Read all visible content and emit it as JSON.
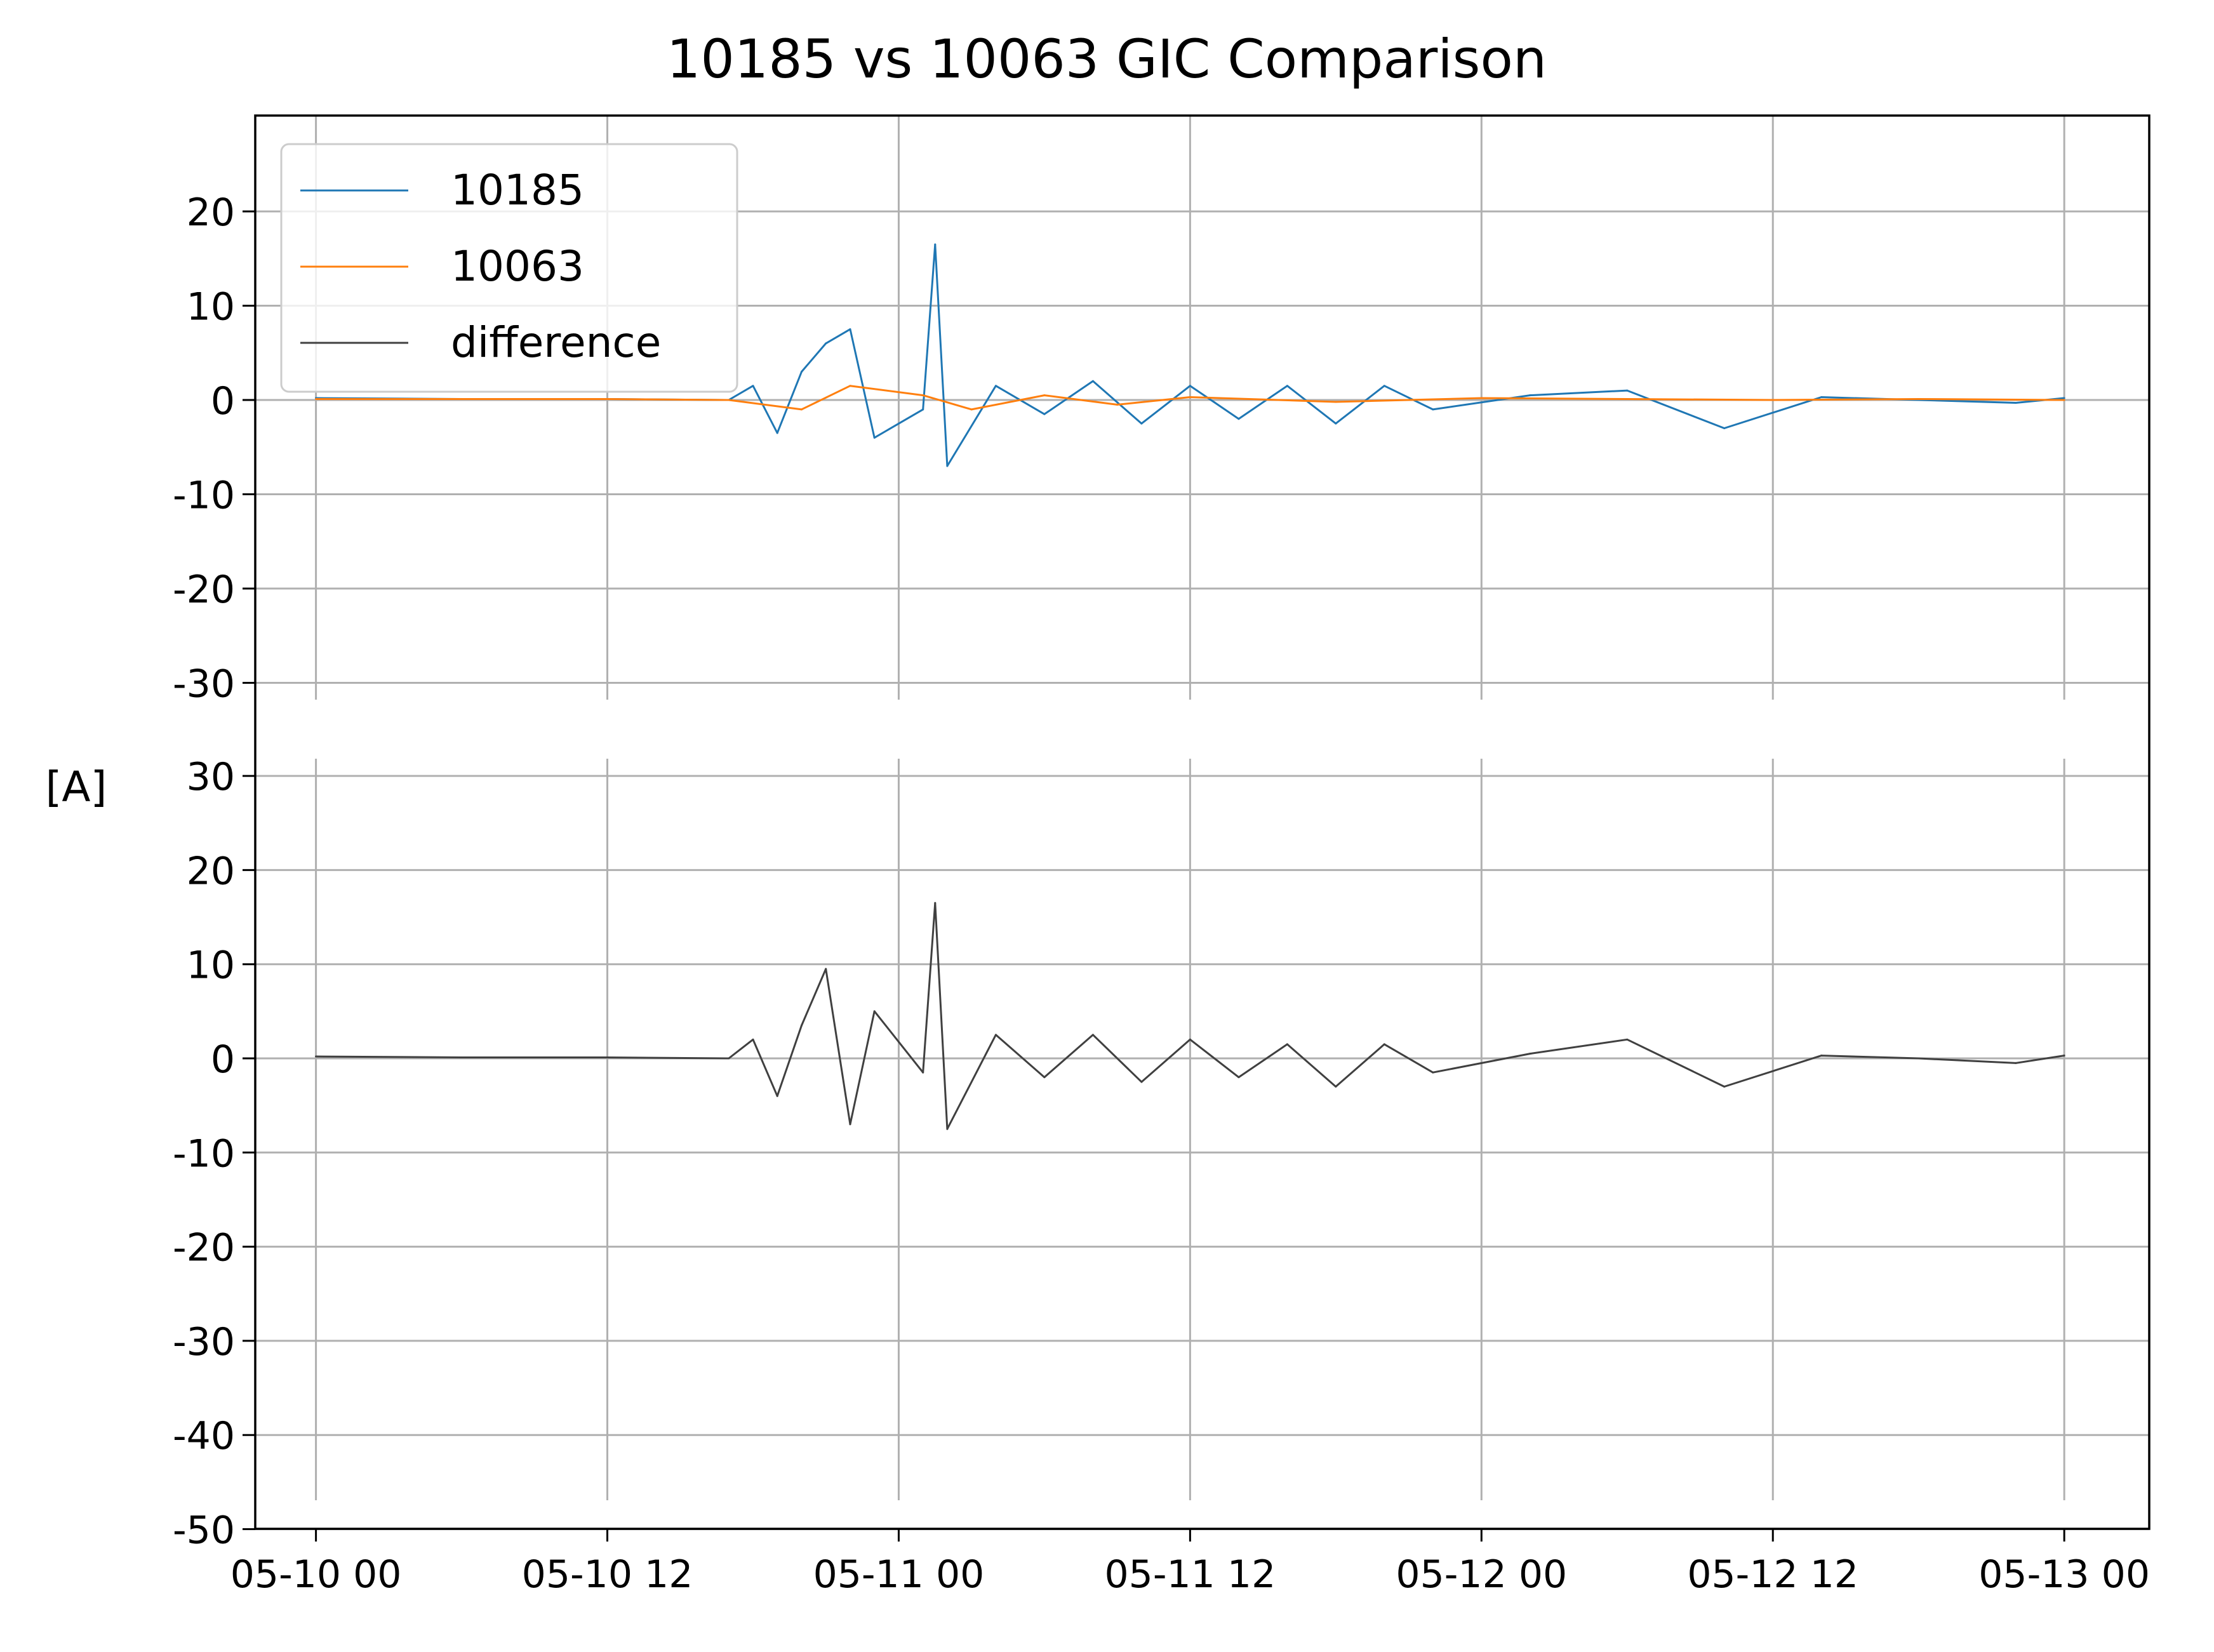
{
  "chart_data": {
    "type": "line",
    "title": "10185 vs 10063 GIC Comparison",
    "ylabel": "[A]",
    "x_ticks": [
      "05-10 00",
      "05-10 12",
      "05-11 00",
      "05-11 12",
      "05-12 00",
      "05-12 12",
      "05-13 00"
    ],
    "x_range": [
      "2024-05-09 21:30",
      "2024-05-13 03:30"
    ],
    "grid": true,
    "legend_position": "upper-left",
    "colors": {
      "10185": "#1f77b4",
      "10063": "#ff7f0e",
      "difference": "#404040",
      "grid": "#b0b0b0"
    },
    "panels": [
      {
        "yticks": [
          20,
          10,
          0,
          -10,
          -20,
          -30
        ],
        "ylim": [
          -30,
          30
        ],
        "series": [
          {
            "name": "10185",
            "x": [
              "2024-05-10 00:00",
              "2024-05-10 06:00",
              "2024-05-10 12:00",
              "2024-05-10 17:00",
              "2024-05-10 18:00",
              "2024-05-10 19:00",
              "2024-05-10 20:00",
              "2024-05-10 21:00",
              "2024-05-10 22:00",
              "2024-05-10 23:00",
              "2024-05-11 01:00",
              "2024-05-11 01:30",
              "2024-05-11 02:00",
              "2024-05-11 04:00",
              "2024-05-11 06:00",
              "2024-05-11 08:00",
              "2024-05-11 10:00",
              "2024-05-11 12:00",
              "2024-05-11 14:00",
              "2024-05-11 16:00",
              "2024-05-11 18:00",
              "2024-05-11 20:00",
              "2024-05-11 22:00",
              "2024-05-12 02:00",
              "2024-05-12 06:00",
              "2024-05-12 10:00",
              "2024-05-12 14:00",
              "2024-05-12 18:00",
              "2024-05-12 22:00",
              "2024-05-13 00:00"
            ],
            "y": [
              0.2,
              0.1,
              0.1,
              0.0,
              1.5,
              -3.5,
              3.0,
              6.0,
              7.5,
              -4.0,
              -1.0,
              16.5,
              -7.0,
              1.5,
              -1.5,
              2.0,
              -2.5,
              1.5,
              -2.0,
              1.5,
              -2.5,
              1.5,
              -1.0,
              0.5,
              1.0,
              -3.0,
              0.3,
              0.0,
              -0.3,
              0.2
            ]
          },
          {
            "name": "10063",
            "x": [
              "2024-05-10 00:00",
              "2024-05-10 06:00",
              "2024-05-10 12:00",
              "2024-05-10 17:00",
              "2024-05-10 20:00",
              "2024-05-10 22:00",
              "2024-05-11 01:00",
              "2024-05-11 03:00",
              "2024-05-11 06:00",
              "2024-05-11 09:00",
              "2024-05-11 12:00",
              "2024-05-11 18:00",
              "2024-05-12 00:00",
              "2024-05-12 06:00",
              "2024-05-12 12:00",
              "2024-05-12 18:00",
              "2024-05-13 00:00"
            ],
            "y": [
              0.1,
              0.1,
              0.1,
              0.0,
              -1.0,
              1.5,
              0.5,
              -1.0,
              0.5,
              -0.5,
              0.3,
              -0.2,
              0.2,
              0.1,
              0.0,
              0.1,
              0.0
            ]
          }
        ]
      },
      {
        "yticks": [
          30,
          20,
          10,
          0,
          -10,
          -20,
          -30,
          -40,
          -50
        ],
        "ylim": [
          -50,
          30
        ],
        "series": [
          {
            "name": "difference",
            "x": [
              "2024-05-10 00:00",
              "2024-05-10 06:00",
              "2024-05-10 12:00",
              "2024-05-10 17:00",
              "2024-05-10 18:00",
              "2024-05-10 19:00",
              "2024-05-10 20:00",
              "2024-05-10 21:00",
              "2024-05-10 22:00",
              "2024-05-10 23:00",
              "2024-05-11 01:00",
              "2024-05-11 01:30",
              "2024-05-11 02:00",
              "2024-05-11 04:00",
              "2024-05-11 06:00",
              "2024-05-11 08:00",
              "2024-05-11 10:00",
              "2024-05-11 12:00",
              "2024-05-11 14:00",
              "2024-05-11 16:00",
              "2024-05-11 18:00",
              "2024-05-11 20:00",
              "2024-05-11 22:00",
              "2024-05-12 02:00",
              "2024-05-12 06:00",
              "2024-05-12 10:00",
              "2024-05-12 14:00",
              "2024-05-12 18:00",
              "2024-05-12 22:00",
              "2024-05-13 00:00"
            ],
            "y": [
              0.2,
              0.1,
              0.1,
              0.0,
              2.0,
              -4.0,
              3.5,
              9.5,
              -7.0,
              5.0,
              -1.5,
              16.5,
              -7.5,
              2.5,
              -2.0,
              2.5,
              -2.5,
              2.0,
              -2.0,
              1.5,
              -3.0,
              1.5,
              -1.5,
              0.5,
              2.0,
              -3.0,
              0.3,
              0.0,
              -0.5,
              0.3
            ]
          }
        ]
      }
    ]
  }
}
